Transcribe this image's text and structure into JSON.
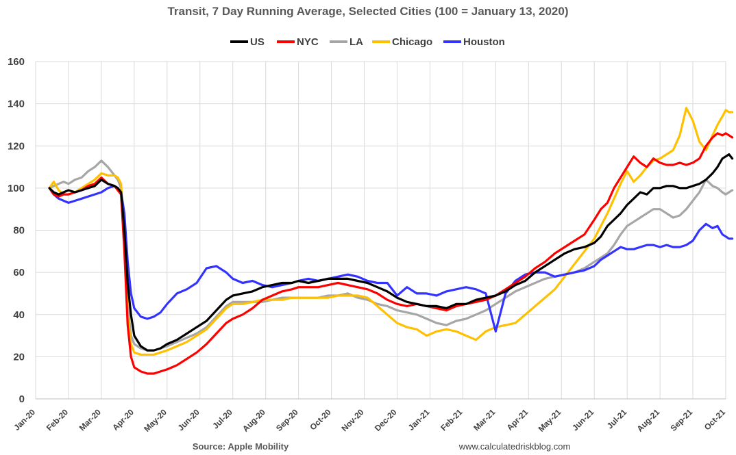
{
  "chart_data": {
    "type": "line",
    "title": "Transit, 7 Day Running Average, Selected Cities (100 = January 13, 2020)",
    "xlabel": "",
    "ylabel": "",
    "ylim": [
      0,
      160
    ],
    "yticks": [
      "0",
      "20",
      "40",
      "60",
      "80",
      "100",
      "120",
      "140",
      "160"
    ],
    "x_range": [
      0,
      21
    ],
    "xticks": [
      "Jan-20",
      "Feb-20",
      "Mar-20",
      "Apr-20",
      "May-20",
      "Jun-20",
      "Jul-20",
      "Aug-20",
      "Sep-20",
      "Oct-20",
      "Nov-20",
      "Dec-20",
      "Jan-21",
      "Feb-21",
      "Mar-21",
      "Apr-21",
      "May-21",
      "Jun-21",
      "Jul-21",
      "Aug-21",
      "Sep-21",
      "Oct-21"
    ],
    "x_unit": "months since Jan 1, 2020",
    "legend_position": "top",
    "grid": true,
    "source": "Source: Apple Mobility",
    "credit": "www.calculatedriskblog.com",
    "series": [
      {
        "name": "US",
        "color": "#000000",
        "x": [
          0.42,
          0.55,
          0.7,
          0.85,
          1.0,
          1.2,
          1.4,
          1.6,
          1.8,
          2.0,
          2.2,
          2.4,
          2.5,
          2.6,
          2.7,
          2.8,
          2.9,
          3.0,
          3.2,
          3.4,
          3.6,
          3.8,
          4.0,
          4.3,
          4.6,
          4.9,
          5.2,
          5.5,
          5.8,
          6.0,
          6.3,
          6.6,
          6.9,
          7.2,
          7.5,
          7.8,
          8.0,
          8.3,
          8.6,
          8.9,
          9.2,
          9.5,
          9.8,
          10.1,
          10.4,
          10.7,
          11.0,
          11.3,
          11.6,
          11.9,
          12.2,
          12.5,
          12.8,
          13.1,
          13.4,
          13.7,
          14.0,
          14.3,
          14.6,
          14.9,
          15.2,
          15.5,
          15.8,
          16.1,
          16.4,
          16.7,
          17.0,
          17.2,
          17.4,
          17.6,
          17.8,
          18.0,
          18.2,
          18.4,
          18.6,
          18.8,
          19.0,
          19.2,
          19.4,
          19.6,
          19.8,
          20.0,
          20.2,
          20.4,
          20.6,
          20.75,
          20.9,
          21.0,
          21.1,
          21.2
        ],
        "values": [
          100,
          98,
          97,
          98,
          99,
          98,
          99,
          100,
          101,
          104,
          102,
          101,
          100,
          98,
          80,
          55,
          40,
          30,
          25,
          23,
          23,
          24,
          26,
          28,
          31,
          34,
          37,
          42,
          47,
          49,
          50,
          51,
          53,
          54,
          55,
          55,
          56,
          55,
          56,
          57,
          57,
          57,
          56,
          55,
          53,
          51,
          48,
          46,
          45,
          44,
          44,
          43,
          45,
          45,
          47,
          48,
          49,
          51,
          54,
          56,
          60,
          63,
          66,
          69,
          71,
          72,
          74,
          77,
          82,
          85,
          88,
          92,
          95,
          98,
          97,
          100,
          100,
          101,
          101,
          100,
          100,
          101,
          102,
          104,
          107,
          110,
          114,
          115,
          116,
          114
        ]
      },
      {
        "name": "NYC",
        "color": "#ff0000",
        "x": [
          0.42,
          0.55,
          0.7,
          0.85,
          1.0,
          1.2,
          1.4,
          1.6,
          1.8,
          2.0,
          2.2,
          2.4,
          2.5,
          2.6,
          2.7,
          2.8,
          2.9,
          3.0,
          3.2,
          3.4,
          3.6,
          3.8,
          4.0,
          4.3,
          4.6,
          4.9,
          5.2,
          5.5,
          5.8,
          6.0,
          6.3,
          6.6,
          6.9,
          7.2,
          7.5,
          7.8,
          8.0,
          8.3,
          8.6,
          8.9,
          9.2,
          9.5,
          9.8,
          10.1,
          10.4,
          10.7,
          11.0,
          11.3,
          11.6,
          11.9,
          12.2,
          12.5,
          12.8,
          13.1,
          13.4,
          13.7,
          14.0,
          14.3,
          14.6,
          14.9,
          15.2,
          15.5,
          15.8,
          16.1,
          16.4,
          16.7,
          17.0,
          17.2,
          17.4,
          17.6,
          17.8,
          18.0,
          18.2,
          18.4,
          18.6,
          18.8,
          19.0,
          19.2,
          19.4,
          19.6,
          19.8,
          20.0,
          20.2,
          20.4,
          20.6,
          20.75,
          20.9,
          21.0,
          21.1,
          21.2
        ],
        "values": [
          100,
          97,
          96,
          97,
          97,
          98,
          99,
          101,
          102,
          105,
          102,
          101,
          99,
          97,
          70,
          35,
          20,
          15,
          13,
          12,
          12,
          13,
          14,
          16,
          19,
          22,
          26,
          31,
          36,
          38,
          40,
          43,
          47,
          49,
          51,
          52,
          53,
          53,
          53,
          54,
          55,
          54,
          53,
          52,
          50,
          47,
          45,
          44,
          45,
          44,
          43,
          42,
          44,
          45,
          46,
          47,
          49,
          52,
          55,
          58,
          62,
          65,
          69,
          72,
          75,
          78,
          85,
          90,
          93,
          100,
          105,
          110,
          115,
          112,
          110,
          114,
          112,
          111,
          111,
          112,
          111,
          112,
          114,
          120,
          124,
          126,
          125,
          126,
          125,
          124
        ]
      },
      {
        "name": "LA",
        "color": "#a6a6a6",
        "x": [
          0.42,
          0.55,
          0.7,
          0.85,
          1.0,
          1.2,
          1.4,
          1.6,
          1.8,
          2.0,
          2.2,
          2.4,
          2.5,
          2.6,
          2.7,
          2.8,
          2.9,
          3.0,
          3.2,
          3.4,
          3.6,
          3.8,
          4.0,
          4.3,
          4.6,
          4.9,
          5.2,
          5.5,
          5.8,
          6.0,
          6.3,
          6.6,
          6.9,
          7.2,
          7.5,
          7.8,
          8.0,
          8.3,
          8.6,
          8.9,
          9.2,
          9.5,
          9.8,
          10.1,
          10.4,
          10.7,
          11.0,
          11.3,
          11.6,
          11.9,
          12.2,
          12.5,
          12.8,
          13.1,
          13.4,
          13.7,
          14.0,
          14.3,
          14.6,
          14.9,
          15.2,
          15.5,
          15.8,
          16.1,
          16.4,
          16.7,
          17.0,
          17.2,
          17.4,
          17.6,
          17.8,
          18.0,
          18.2,
          18.4,
          18.6,
          18.8,
          19.0,
          19.2,
          19.4,
          19.6,
          19.8,
          20.0,
          20.2,
          20.4,
          20.6,
          20.75,
          20.9,
          21.0,
          21.1,
          21.2
        ],
        "values": [
          100,
          101,
          102,
          103,
          102,
          104,
          105,
          108,
          110,
          113,
          110,
          106,
          104,
          100,
          75,
          45,
          30,
          26,
          24,
          23,
          23,
          24,
          25,
          27,
          29,
          31,
          34,
          39,
          44,
          46,
          46,
          46,
          46,
          47,
          48,
          48,
          48,
          48,
          48,
          49,
          49,
          50,
          48,
          47,
          45,
          44,
          42,
          41,
          40,
          38,
          36,
          35,
          37,
          38,
          40,
          42,
          45,
          48,
          51,
          53,
          55,
          57,
          58,
          59,
          60,
          62,
          65,
          67,
          69,
          73,
          78,
          82,
          84,
          86,
          88,
          90,
          90,
          88,
          86,
          87,
          90,
          94,
          98,
          104,
          101,
          100,
          98,
          97,
          98,
          99
        ]
      },
      {
        "name": "Chicago",
        "color": "#ffc000",
        "x": [
          0.42,
          0.55,
          0.7,
          0.85,
          1.0,
          1.2,
          1.4,
          1.6,
          1.8,
          2.0,
          2.2,
          2.4,
          2.5,
          2.6,
          2.7,
          2.8,
          2.9,
          3.0,
          3.2,
          3.4,
          3.6,
          3.8,
          4.0,
          4.3,
          4.6,
          4.9,
          5.2,
          5.5,
          5.8,
          6.0,
          6.3,
          6.6,
          6.9,
          7.2,
          7.5,
          7.8,
          8.0,
          8.3,
          8.6,
          8.9,
          9.2,
          9.5,
          9.8,
          10.1,
          10.4,
          10.7,
          11.0,
          11.3,
          11.6,
          11.9,
          12.2,
          12.5,
          12.8,
          13.1,
          13.4,
          13.7,
          14.0,
          14.3,
          14.6,
          14.9,
          15.2,
          15.5,
          15.8,
          16.1,
          16.4,
          16.7,
          17.0,
          17.2,
          17.4,
          17.6,
          17.8,
          18.0,
          18.2,
          18.4,
          18.6,
          18.8,
          19.0,
          19.2,
          19.4,
          19.6,
          19.8,
          20.0,
          20.2,
          20.4,
          20.6,
          20.75,
          20.9,
          21.0,
          21.1,
          21.2
        ],
        "values": [
          100,
          103,
          99,
          97,
          97,
          98,
          100,
          102,
          104,
          107,
          106,
          106,
          105,
          102,
          75,
          40,
          26,
          22,
          21,
          21,
          21,
          22,
          23,
          25,
          27,
          30,
          33,
          38,
          43,
          45,
          45,
          46,
          47,
          47,
          47,
          48,
          48,
          48,
          48,
          48,
          49,
          49,
          49,
          48,
          44,
          40,
          36,
          34,
          33,
          30,
          32,
          33,
          32,
          30,
          28,
          32,
          34,
          35,
          36,
          40,
          44,
          48,
          52,
          58,
          64,
          70,
          76,
          82,
          88,
          95,
          102,
          108,
          103,
          106,
          110,
          113,
          114,
          116,
          118,
          125,
          138,
          132,
          122,
          118,
          125,
          130,
          134,
          137,
          136,
          136
        ]
      },
      {
        "name": "Houston",
        "color": "#3333ff",
        "x": [
          0.42,
          0.55,
          0.7,
          0.85,
          1.0,
          1.2,
          1.4,
          1.6,
          1.8,
          2.0,
          2.2,
          2.4,
          2.5,
          2.6,
          2.7,
          2.8,
          2.9,
          3.0,
          3.2,
          3.4,
          3.6,
          3.8,
          4.0,
          4.3,
          4.6,
          4.9,
          5.2,
          5.5,
          5.8,
          6.0,
          6.3,
          6.6,
          6.9,
          7.2,
          7.5,
          7.8,
          8.0,
          8.3,
          8.6,
          8.9,
          9.2,
          9.5,
          9.8,
          10.1,
          10.4,
          10.7,
          11.0,
          11.3,
          11.6,
          11.9,
          12.2,
          12.5,
          12.8,
          13.1,
          13.4,
          13.7,
          14.0,
          14.3,
          14.6,
          14.9,
          15.2,
          15.5,
          15.8,
          16.1,
          16.4,
          16.7,
          17.0,
          17.2,
          17.4,
          17.6,
          17.8,
          18.0,
          18.2,
          18.4,
          18.6,
          18.8,
          19.0,
          19.2,
          19.4,
          19.6,
          19.8,
          20.0,
          20.2,
          20.4,
          20.6,
          20.75,
          20.9,
          21.0,
          21.1,
          21.2
        ],
        "values": [
          100,
          97,
          95,
          94,
          93,
          94,
          95,
          96,
          97,
          98,
          100,
          101,
          100,
          98,
          88,
          65,
          50,
          43,
          39,
          38,
          39,
          41,
          45,
          50,
          52,
          55,
          62,
          63,
          60,
          57,
          55,
          56,
          54,
          53,
          54,
          55,
          56,
          57,
          56,
          57,
          58,
          59,
          58,
          56,
          55,
          55,
          49,
          53,
          50,
          50,
          49,
          51,
          52,
          53,
          52,
          50,
          32,
          50,
          56,
          59,
          60,
          60,
          58,
          59,
          60,
          61,
          63,
          66,
          68,
          70,
          72,
          71,
          71,
          72,
          73,
          73,
          72,
          73,
          72,
          72,
          73,
          75,
          80,
          83,
          81,
          82,
          78,
          77,
          76,
          76
        ]
      }
    ]
  }
}
